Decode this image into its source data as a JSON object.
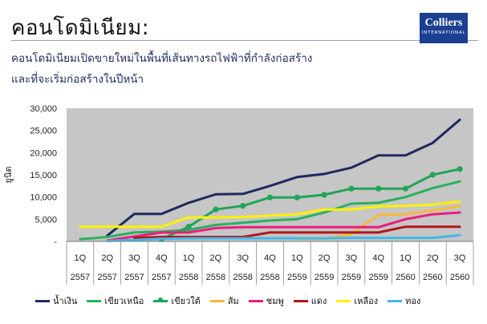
{
  "header": {
    "title": "คอนโดมิเนียม:",
    "subtitle_line1": "คอนโดมิเนียมเปิดขายใหม่ในพื้นที่เส้นทางรถไฟฟ้าที่กำลังก่อสร้าง",
    "subtitle_line2": "และที่จะเริ่มก่อสร้างในปีหน้า",
    "logo_name": "Colliers",
    "logo_sub": "INTERNATIONAL"
  },
  "chart_data": {
    "type": "line",
    "ylabel": "ยูนิต",
    "xlabel": "",
    "ylim": [
      0,
      30000
    ],
    "yticks": [
      {
        "value": 0,
        "label": "-"
      },
      {
        "value": 5000,
        "label": "5,000"
      },
      {
        "value": 10000,
        "label": "10,000"
      },
      {
        "value": 15000,
        "label": "15,000"
      },
      {
        "value": 20000,
        "label": "20,000"
      },
      {
        "value": 25000,
        "label": "25,000"
      },
      {
        "value": 30000,
        "label": "30,000"
      }
    ],
    "grid": false,
    "legend_position": "bottom",
    "categories": [
      {
        "q": "1Q",
        "y": "2557"
      },
      {
        "q": "2Q",
        "y": "2557"
      },
      {
        "q": "3Q",
        "y": "2557"
      },
      {
        "q": "4Q",
        "y": "2557"
      },
      {
        "q": "1Q",
        "y": "2558"
      },
      {
        "q": "2Q",
        "y": "2558"
      },
      {
        "q": "3Q",
        "y": "2558"
      },
      {
        "q": "4Q",
        "y": "2558"
      },
      {
        "q": "1Q",
        "y": "2559"
      },
      {
        "q": "2Q",
        "y": "2559"
      },
      {
        "q": "3Q",
        "y": "2559"
      },
      {
        "q": "4Q",
        "y": "2559"
      },
      {
        "q": "1Q",
        "y": "2560"
      },
      {
        "q": "2Q",
        "y": "2560"
      },
      {
        "q": "3Q",
        "y": "2560"
      }
    ],
    "series": [
      {
        "name": "น้ำเงิน",
        "color": "#1f2a5e",
        "marker": false,
        "values": [
          null,
          1300,
          6200,
          6200,
          8700,
          10600,
          10700,
          12500,
          14500,
          15200,
          16600,
          19400,
          19400,
          22200,
          27400
        ]
      },
      {
        "name": "เขียวเหนือ",
        "color": "#2ab05e",
        "marker": false,
        "values": [
          500,
          1000,
          2000,
          2200,
          2600,
          3700,
          4200,
          4700,
          5000,
          6500,
          8500,
          8700,
          10000,
          12000,
          13500
        ]
      },
      {
        "name": "เขียวใต้",
        "color": "#21a556",
        "marker": true,
        "values": [
          null,
          null,
          null,
          500,
          3300,
          7200,
          8000,
          9900,
          9900,
          10500,
          11900,
          11900,
          11900,
          15000,
          16300
        ]
      },
      {
        "name": "ส้ม",
        "color": "#f6b93b",
        "marker": false,
        "values": [
          null,
          null,
          null,
          null,
          null,
          null,
          null,
          null,
          600,
          600,
          1600,
          6000,
          6100,
          7000,
          7900
        ]
      },
      {
        "name": "ชมพู",
        "color": "#e91e7d",
        "marker": false,
        "values": [
          null,
          200,
          1100,
          2000,
          2000,
          3000,
          3200,
          3200,
          3200,
          3200,
          3200,
          3200,
          5000,
          6100,
          6500
        ]
      },
      {
        "name": "แดง",
        "color": "#b3161a",
        "marker": false,
        "values": [
          null,
          null,
          800,
          1000,
          1000,
          1000,
          1000,
          2000,
          2000,
          2000,
          2000,
          2000,
          3300,
          3300,
          3300
        ]
      },
      {
        "name": "เหลือง",
        "color": "#fff200",
        "marker": false,
        "values": [
          3300,
          3300,
          3300,
          3300,
          5400,
          5400,
          5500,
          5800,
          6100,
          7200,
          7200,
          7900,
          8000,
          8300,
          9000
        ]
      },
      {
        "name": "ทอง",
        "color": "#3fb8e8",
        "marker": false,
        "values": [
          null,
          100,
          300,
          600,
          700,
          700,
          700,
          700,
          700,
          700,
          800,
          800,
          800,
          800,
          1400
        ]
      }
    ]
  }
}
